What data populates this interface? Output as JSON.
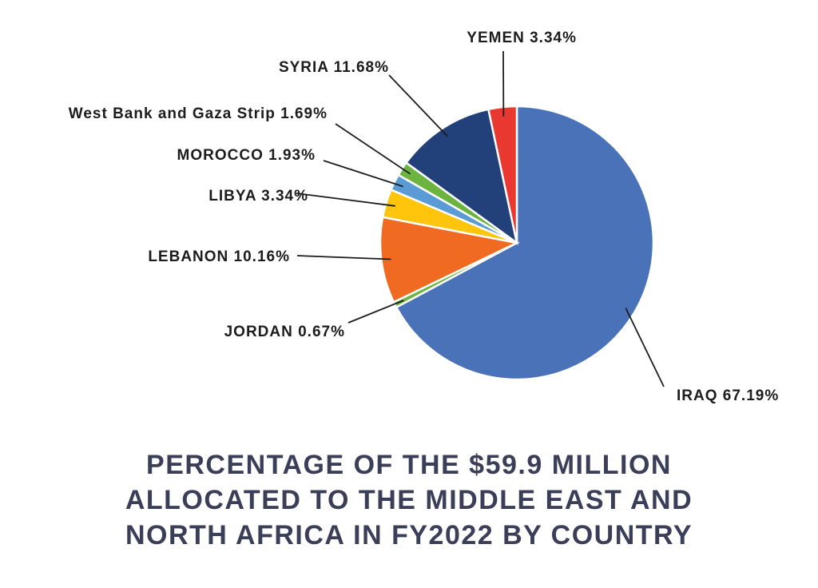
{
  "chart_data": {
    "type": "pie",
    "title_lines": [
      "PERCENTAGE OF THE $59.9 MILLION",
      "ALLOCATED TO THE MIDDLE EAST AND",
      "NORTH AFRICA IN FY2022 BY COUNTRY"
    ],
    "start": "12 o'clock",
    "direction": "clockwise",
    "slices": [
      {
        "label": "IRAQ 67.19%",
        "name": "IRAQ",
        "value": 67.19,
        "color": "#4a72b8"
      },
      {
        "label": "JORDAN 0.67%",
        "name": "JORDAN",
        "value": 0.67,
        "color": "#6cb33f"
      },
      {
        "label": "LEBANON 10.16%",
        "name": "LEBANON",
        "value": 10.16,
        "color": "#f06a22"
      },
      {
        "label": "LIBYA 3.34%",
        "name": "LIBYA",
        "value": 3.34,
        "color": "#ffc40c"
      },
      {
        "label": "MOROCCO 1.93%",
        "name": "MOROCCO",
        "value": 1.93,
        "color": "#5b9bd5"
      },
      {
        "label": "West Bank and Gaza Strip 1.69%",
        "name": "West Bank and Gaza Strip",
        "value": 1.69,
        "color": "#6cb33f"
      },
      {
        "label": "SYRIA 11.68%",
        "name": "SYRIA",
        "value": 11.68,
        "color": "#22417a"
      },
      {
        "label": "YEMEN 3.34%",
        "name": "YEMEN",
        "value": 3.34,
        "color": "#e8382f"
      }
    ]
  }
}
